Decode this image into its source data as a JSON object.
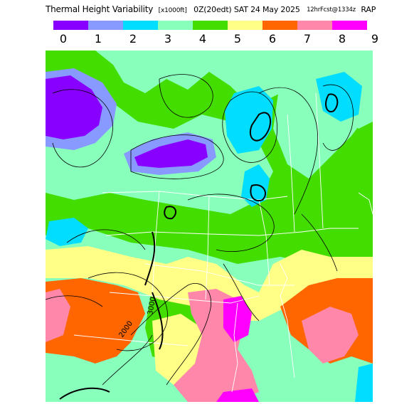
{
  "header": {
    "title": "Thermal Height Variability",
    "unit": "[x1000ft]",
    "valid_time": "0Z(20edt) SAT 24 May 2025",
    "forecast_info": "12hrFcst@1334z",
    "model": "RAP"
  },
  "legend": {
    "bins": [
      {
        "label": "0",
        "color": "#8800ff"
      },
      {
        "label": "1",
        "color": "#8899ff"
      },
      {
        "label": "2",
        "color": "#00ddff"
      },
      {
        "label": "3",
        "color": "#88ffbb"
      },
      {
        "label": "4",
        "color": "#44dd00"
      },
      {
        "label": "5",
        "color": "#ffff88"
      },
      {
        "label": "6",
        "color": "#ff6600"
      },
      {
        "label": "7",
        "color": "#ff88aa"
      },
      {
        "label": "8",
        "color": "#ff00ff"
      }
    ],
    "end_label": "9"
  },
  "map": {
    "contour_labels": [
      "2000",
      "3000"
    ]
  }
}
